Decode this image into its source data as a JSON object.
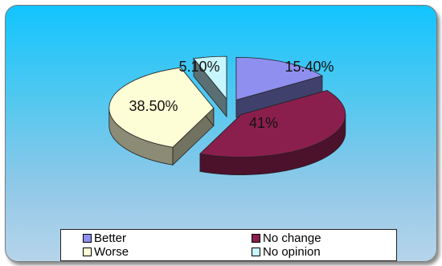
{
  "chart_data": {
    "type": "pie",
    "style": "3d-exploded",
    "title": "",
    "slices": [
      {
        "label": "Better",
        "value": 15.4,
        "display": "15.40%",
        "color": "#8f8ff0"
      },
      {
        "label": "No change",
        "value": 41.0,
        "display": "41%",
        "color": "#8a1f4e"
      },
      {
        "label": "Worse",
        "value": 38.5,
        "display": "38.50%",
        "color": "#fefed6"
      },
      {
        "label": "No opinion",
        "value": 5.1,
        "display": "5.10%",
        "color": "#c7f6ff"
      }
    ],
    "legend": {
      "position": "bottom",
      "columns": 2
    },
    "background": "#4fc8f0"
  }
}
